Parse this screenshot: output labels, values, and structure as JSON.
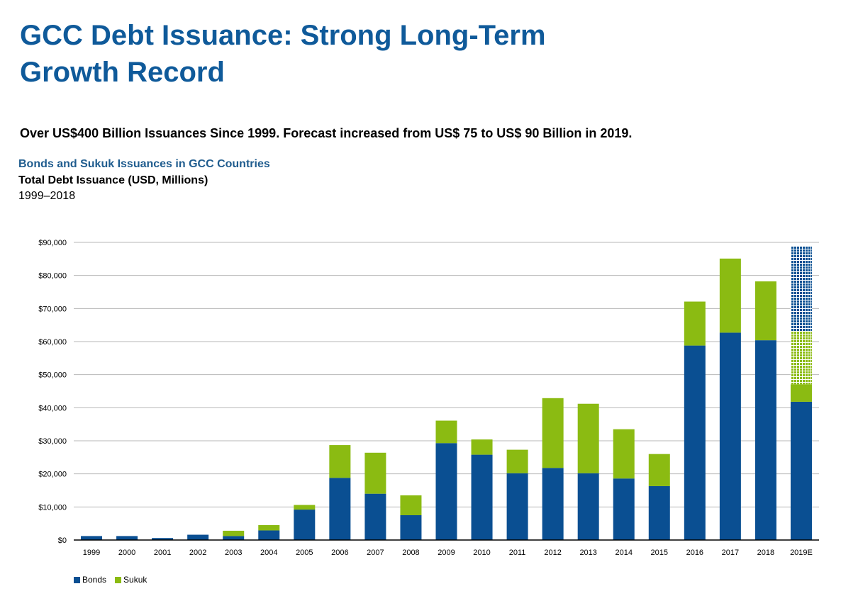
{
  "page": {
    "title_line1": "GCC Debt Issuance: Strong Long-Term",
    "title_line2": "Growth Record",
    "headline": "Over US$400 Billion Issuances Since 1999.  Forecast increased from US$ 75 to US$ 90 Billion in 2019.",
    "subtitle": "Bonds and Sukuk Issuances in GCC Countries",
    "metric": "Total Debt Issuance (USD, Millions)",
    "period": "1999–2018"
  },
  "colors": {
    "bonds": "#0a4f92",
    "sukuk": "#8bbb12",
    "grid": "#b7b7b7",
    "axis": "#000000"
  },
  "chart_data": {
    "type": "bar",
    "stacked": true,
    "ylim": [
      0,
      90000
    ],
    "yticks": [
      0,
      10000,
      20000,
      30000,
      40000,
      50000,
      60000,
      70000,
      80000,
      90000
    ],
    "ytick_labels": [
      "$0",
      "$10,000",
      "$20,000",
      "$30,000",
      "$40,000",
      "$50,000",
      "$60,000",
      "$70,000",
      "$80,000",
      "$90,000"
    ],
    "grid": true,
    "legend_position": "bottom-left",
    "categories": [
      "1999",
      "2000",
      "2001",
      "2002",
      "2003",
      "2004",
      "2005",
      "2006",
      "2007",
      "2008",
      "2009",
      "2010",
      "2011",
      "2012",
      "2013",
      "2014",
      "2015",
      "2016",
      "2017",
      "2018",
      "2019E"
    ],
    "series": [
      {
        "name": "Bonds",
        "values": [
          1200,
          1200,
          600,
          1600,
          1200,
          2900,
          9200,
          18800,
          14000,
          7500,
          29300,
          25800,
          20200,
          21800,
          20200,
          18600,
          16300,
          58800,
          62700,
          60400,
          41800
        ]
      },
      {
        "name": "Sukuk",
        "values": [
          0,
          0,
          0,
          0,
          1600,
          1600,
          1400,
          9900,
          12400,
          6000,
          6800,
          4600,
          7100,
          21100,
          21000,
          14900,
          9700,
          13300,
          22400,
          17800,
          5300
        ]
      }
    ],
    "forecast_2019E": {
      "sukuk_hatched": 16000,
      "bonds_hatched": 25700
    }
  }
}
